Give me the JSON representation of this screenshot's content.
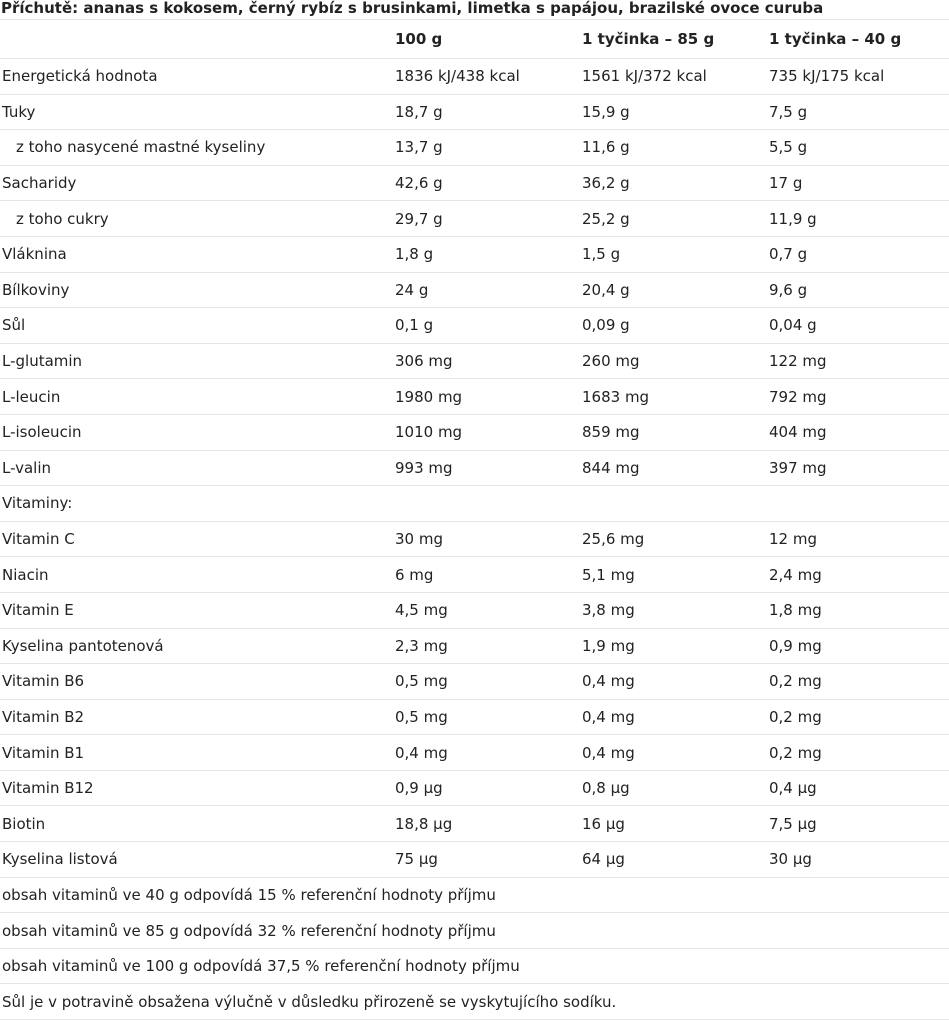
{
  "heading": "Příchutě: ananas s kokosem, černý rybíz s brusinkami, limetka s papájou, brazilské ovoce curuba",
  "columns": [
    "",
    "100 g",
    "1 tyčinka – 85 g",
    "1 tyčinka – 40 g"
  ],
  "rows": [
    {
      "label": "Energetická hodnota",
      "v100": "1836 kJ/438 kcal",
      "v85": "1561 kJ/372 kcal",
      "v40": "735 kJ/175 kcal"
    },
    {
      "label": "Tuky",
      "v100": "18,7 g",
      "v85": "15,9 g",
      "v40": "7,5 g"
    },
    {
      "label": "z toho nasycené mastné kyseliny",
      "v100": "13,7 g",
      "v85": "11,6 g",
      "v40": "5,5 g"
    },
    {
      "label": "Sacharidy",
      "v100": "42,6 g",
      "v85": "36,2 g",
      "v40": "17 g"
    },
    {
      "label": "z toho cukry",
      "v100": "29,7 g",
      "v85": "25,2 g",
      "v40": "11,9 g"
    },
    {
      "label": "Vláknina",
      "v100": "1,8 g",
      "v85": "1,5 g",
      "v40": "0,7 g"
    },
    {
      "label": "Bílkoviny",
      "v100": "24 g",
      "v85": "20,4 g",
      "v40": "9,6 g"
    },
    {
      "label": "Sůl",
      "v100": "0,1 g",
      "v85": "0,09 g",
      "v40": "0,04 g"
    },
    {
      "label": "L-glutamin",
      "v100": "306 mg",
      "v85": "260 mg",
      "v40": "122 mg"
    },
    {
      "label": "L-leucin",
      "v100": "1980 mg",
      "v85": "1683 mg",
      "v40": "792 mg"
    },
    {
      "label": "L-isoleucin",
      "v100": "1010 mg",
      "v85": "859 mg",
      "v40": "404 mg"
    },
    {
      "label": "L-valin",
      "v100": "993 mg",
      "v85": "844 mg",
      "v40": "397 mg"
    },
    {
      "label": "Vitaminy:",
      "v100": "",
      "v85": "",
      "v40": ""
    },
    {
      "label": "Vitamin C",
      "v100": "30 mg",
      "v85": "25,6 mg",
      "v40": "12 mg"
    },
    {
      "label": "Niacin",
      "v100": "6 mg",
      "v85": "5,1 mg",
      "v40": "2,4 mg"
    },
    {
      "label": "Vitamin E",
      "v100": "4,5 mg",
      "v85": "3,8 mg",
      "v40": "1,8 mg"
    },
    {
      "label": "Kyselina pantotenová",
      "v100": "2,3 mg",
      "v85": "1,9 mg",
      "v40": "0,9 mg"
    },
    {
      "label": "Vitamin B6",
      "v100": "0,5 mg",
      "v85": "0,4 mg",
      "v40": "0,2 mg"
    },
    {
      "label": "Vitamin B2",
      "v100": "0,5 mg",
      "v85": "0,4 mg",
      "v40": "0,2 mg"
    },
    {
      "label": "Vitamin B1",
      "v100": "0,4 mg",
      "v85": "0,4 mg",
      "v40": "0,2 mg"
    },
    {
      "label": "Vitamin B12",
      "v100": "0,9 µg",
      "v85": "0,8 µg",
      "v40": "0,4 µg"
    },
    {
      "label": "Biotin",
      "v100": "18,8 µg",
      "v85": "16 µg",
      "v40": "7,5 µg"
    },
    {
      "label": "Kyselina listová",
      "v100": "75 µg",
      "v85": "64 µg",
      "v40": "30 µg"
    }
  ],
  "notes": [
    "obsah vitaminů ve 40 g odpovídá 15 % referenční hodnoty příjmu",
    "obsah vitaminů ve 85 g odpovídá 32 % referenční hodnoty příjmu",
    "obsah vitaminů ve 100 g odpovídá 37,5 % referenční hodnoty příjmu",
    "Sůl je v potravině obsažena výlučně v důsledku přirozeně se vyskytujícího sodíku."
  ]
}
